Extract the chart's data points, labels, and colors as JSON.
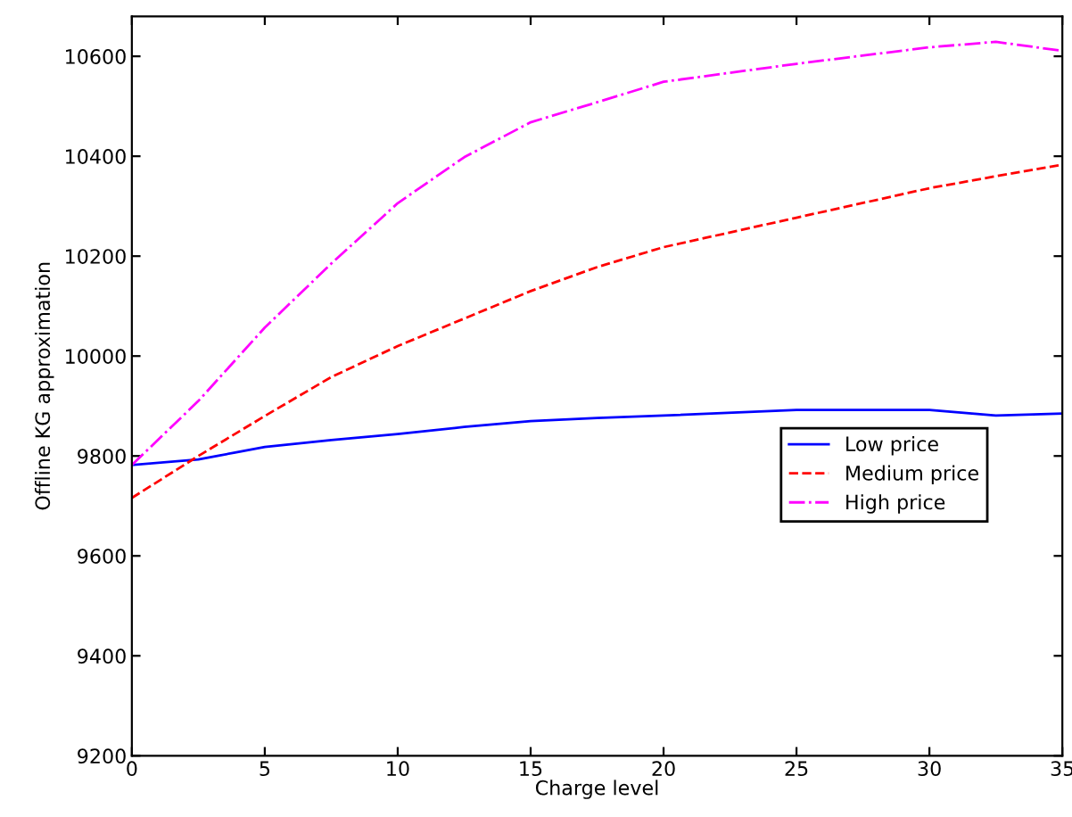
{
  "chart_data": {
    "type": "line",
    "xlabel": "Charge level",
    "ylabel": "Offline KG approximation",
    "xlim": [
      0,
      35
    ],
    "xticks": [
      0,
      5,
      10,
      15,
      20,
      25,
      30,
      35
    ],
    "ylim": [
      9200,
      10680
    ],
    "yticks": [
      9200,
      9400,
      9600,
      9800,
      10000,
      10200,
      10400,
      10600
    ],
    "grid": false,
    "legend": "right",
    "x": [
      0,
      2.5,
      5,
      7.5,
      10,
      12.5,
      15,
      17.5,
      20,
      25,
      30,
      32.5,
      35
    ],
    "series": [
      {
        "name": "Low price",
        "color": "#0000ff",
        "line_style": "solid",
        "values": [
          9782,
          9793,
          9818,
          9832,
          9844,
          9858,
          9870,
          9876,
          9881,
          9892,
          9892,
          9881,
          9885
        ]
      },
      {
        "name": "Medium price",
        "color": "#ff0000",
        "line_style": "dashed",
        "values": [
          9716,
          9800,
          9880,
          9958,
          10020,
          10075,
          10130,
          10178,
          10218,
          10277,
          10336,
          10360,
          10383
        ]
      },
      {
        "name": "High price",
        "color": "#ff00ff",
        "line_style": "dashdot",
        "values": [
          9782,
          9910,
          10057,
          10185,
          10306,
          10398,
          10468,
          10508,
          10549,
          10585,
          10618,
          10629,
          10611
        ]
      }
    ]
  }
}
